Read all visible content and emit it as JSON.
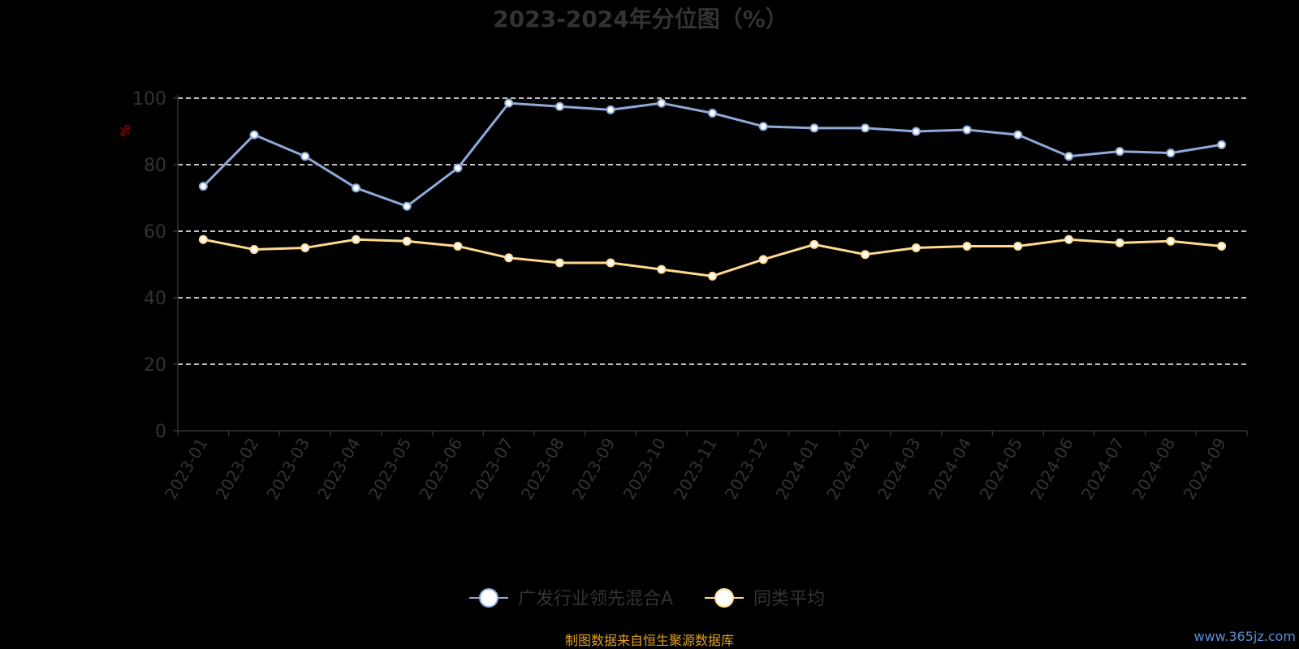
{
  "chart_data": {
    "type": "line",
    "title": "2023-2024年分位图（%）",
    "ylabel": "%",
    "xlabel": "",
    "ylim": [
      0,
      100
    ],
    "yticks": [
      0,
      20,
      40,
      60,
      80,
      100
    ],
    "grid": true,
    "legend_position": "bottom",
    "x": [
      "2023-01",
      "2023-02",
      "2023-03",
      "2023-04",
      "2023-05",
      "2023-06",
      "2023-07",
      "2023-08",
      "2023-09",
      "2023-10",
      "2023-11",
      "2023-12",
      "2024-01",
      "2024-02",
      "2024-03",
      "2024-04",
      "2024-05",
      "2024-06",
      "2024-07",
      "2024-08",
      "2024-09"
    ],
    "series": [
      {
        "name": "广发行业领先混合A",
        "color": "#8eaadb",
        "values": [
          73.5,
          89,
          82.5,
          73,
          67.5,
          79,
          98.5,
          97.5,
          96.5,
          98.5,
          95.5,
          91.5,
          91,
          91,
          90,
          90.5,
          89,
          82.5,
          84,
          83.5,
          86
        ]
      },
      {
        "name": "同类平均",
        "color": "#ffd98e",
        "values": [
          57.5,
          54.5,
          55,
          57.5,
          57,
          55.5,
          52,
          50.5,
          50.5,
          48.5,
          46.5,
          51.5,
          56,
          53,
          55,
          55.5,
          55.5,
          57.5,
          56.5,
          57,
          55.5
        ]
      }
    ]
  },
  "source_text": "制图数据来自恒生聚源数据库",
  "watermark": "www.365jz.com"
}
